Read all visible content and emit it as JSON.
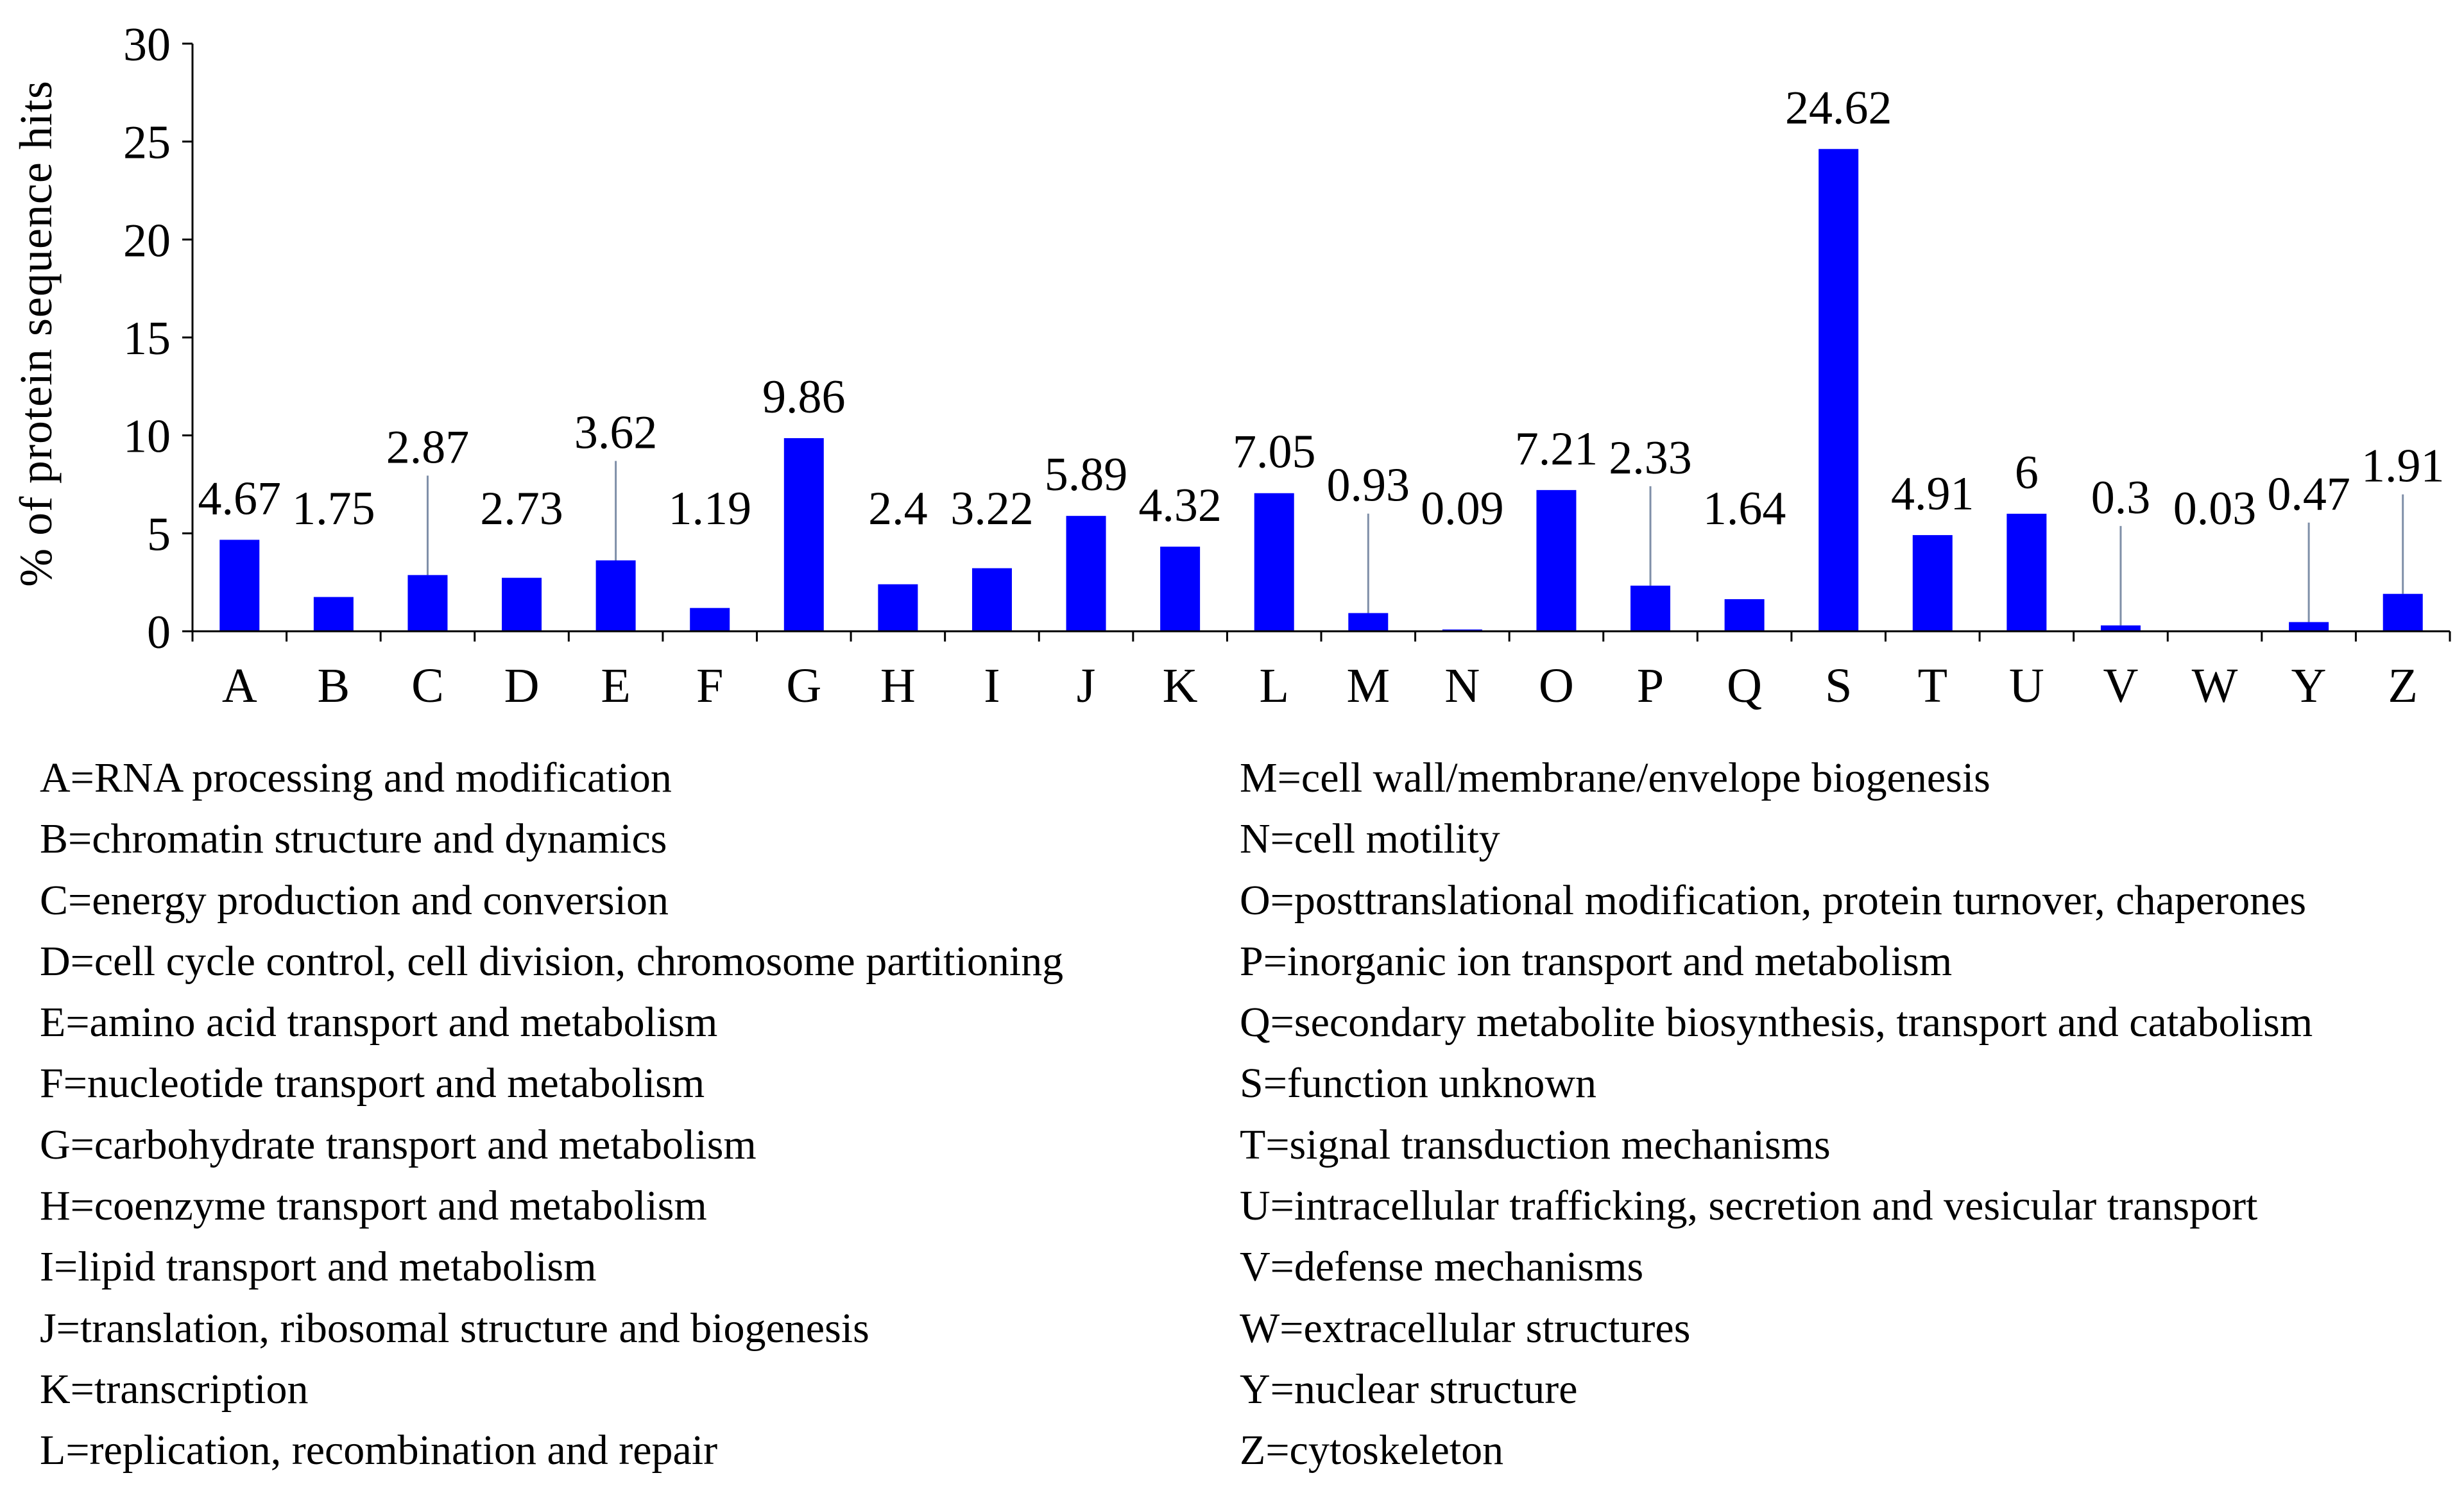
{
  "chart_data": {
    "type": "bar",
    "title": "",
    "xlabel": "",
    "ylabel": "% of protein sequence hits",
    "ylim": [
      0,
      30
    ],
    "yticks": [
      0,
      5,
      10,
      15,
      20,
      25,
      30
    ],
    "grid": false,
    "bar_color": "#0000ff",
    "categories": [
      "A",
      "B",
      "C",
      "D",
      "E",
      "F",
      "G",
      "H",
      "I",
      "J",
      "K",
      "L",
      "M",
      "N",
      "O",
      "P",
      "Q",
      "S",
      "T",
      "U",
      "V",
      "W",
      "Y",
      "Z"
    ],
    "values": [
      4.67,
      1.75,
      2.87,
      2.73,
      3.62,
      1.19,
      9.86,
      2.4,
      3.22,
      5.89,
      4.32,
      7.05,
      0.93,
      0.09,
      7.21,
      2.33,
      1.64,
      24.62,
      4.91,
      6,
      0.3,
      0.03,
      0.47,
      1.91
    ],
    "value_labels": [
      "4.67",
      "1.75",
      "2.87",
      "2.73",
      "3.62",
      "1.19",
      "9.86",
      "2.4",
      "3.22",
      "5.89",
      "4.32",
      "7.05",
      "0.93",
      "0.09",
      "7.21",
      "2.33",
      "1.64",
      "24.62",
      "4.91",
      "6",
      "0.3",
      "0.03",
      "0.47",
      "1.91"
    ],
    "leader_lines": [
      "C",
      "E",
      "M",
      "P",
      "V",
      "Y",
      "Z"
    ]
  },
  "legend_left": [
    "A=RNA processing and modification",
    "B=chromatin structure and dynamics",
    "C=energy production and conversion",
    "D=cell cycle control, cell division, chromosome partitioning",
    "E=amino acid transport and metabolism",
    "F=nucleotide transport and metabolism",
    "G=carbohydrate transport and metabolism",
    "H=coenzyme transport and metabolism",
    "I=lipid transport and metabolism",
    "J=translation, ribosomal structure and biogenesis",
    "K=transcription",
    "L=replication, recombination and repair"
  ],
  "legend_right": [
    "M=cell wall/membrane/envelope biogenesis",
    "N=cell motility",
    "O=posttranslational modification, protein turnover, chaperones",
    "P=inorganic ion transport and metabolism",
    "Q=secondary metabolite biosynthesis, transport and catabolism",
    "S=function unknown",
    "T=signal transduction mechanisms",
    "U=intracellular trafficking, secretion and vesicular transport",
    "V=defense mechanisms",
    "W=extracellular structures",
    "Y=nuclear structure",
    "Z=cytoskeleton"
  ]
}
